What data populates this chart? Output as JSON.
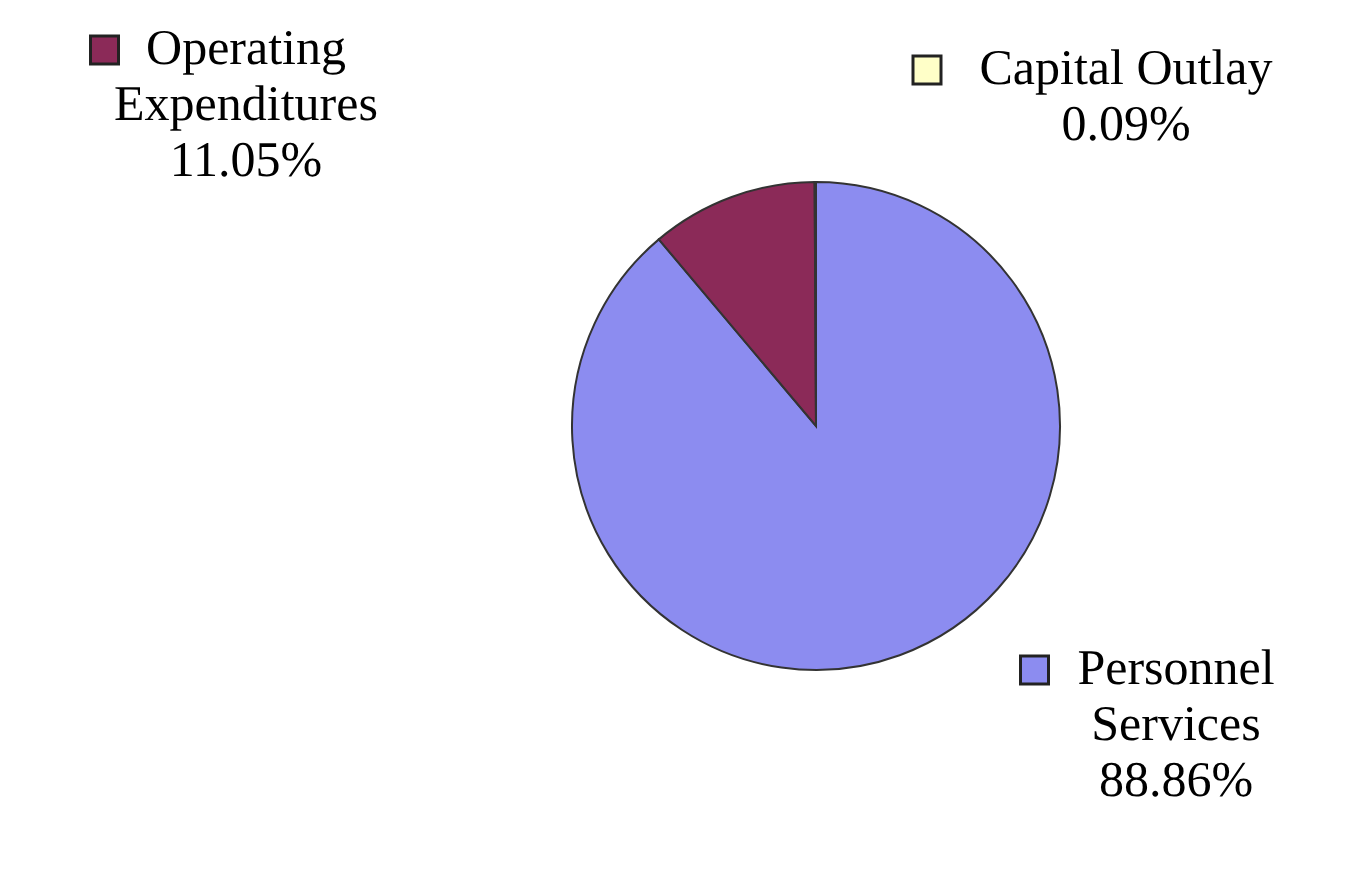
{
  "chart_data": {
    "type": "pie",
    "categories": [
      "Personnel Services",
      "Operating Expenditures",
      "Capital Outlay"
    ],
    "values": [
      88.86,
      11.05,
      0.09
    ],
    "colors": [
      "#8c8cf0",
      "#8b2a58",
      "#ffffc8"
    ],
    "value_labels": [
      "88.86%",
      "11.05%",
      "0.09%"
    ],
    "legend": "top left"
  }
}
